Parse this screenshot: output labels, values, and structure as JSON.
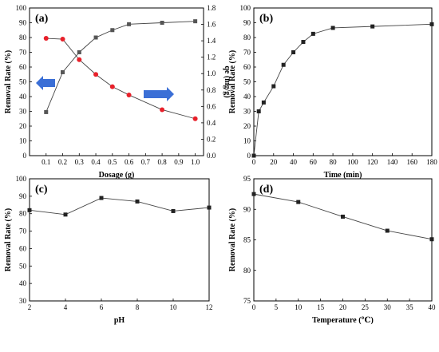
{
  "chart_data": [
    {
      "panel": "(a)",
      "type": "line",
      "xlabel": "Dosage (g)",
      "ylabel": "Removal Rate (%)",
      "y2label": "qe (mg/g)",
      "xlim": [
        0.0,
        1.05
      ],
      "ylim": [
        0,
        100
      ],
      "y2lim": [
        0,
        1.8
      ],
      "xticks": [
        0.1,
        0.2,
        0.3,
        0.4,
        0.5,
        0.6,
        0.7,
        0.8,
        0.9,
        1.0
      ],
      "yticks": [
        0,
        10,
        20,
        30,
        40,
        50,
        60,
        70,
        80,
        90,
        100
      ],
      "y2ticks": [
        0.0,
        0.2,
        0.4,
        0.6,
        0.8,
        1.0,
        1.2,
        1.4,
        1.6,
        1.8
      ],
      "series": [
        {
          "axis": "left",
          "marker": "square",
          "color": "#555555",
          "x": [
            0.1,
            0.2,
            0.3,
            0.4,
            0.5,
            0.6,
            0.8,
            1.0
          ],
          "values": [
            29.5,
            56.5,
            70,
            80,
            85,
            89,
            90,
            91
          ]
        },
        {
          "axis": "right",
          "marker": "circle",
          "color": "#e8202a",
          "x": [
            0.1,
            0.2,
            0.3,
            0.4,
            0.5,
            0.6,
            0.8,
            1.0
          ],
          "values": [
            1.43,
            1.42,
            1.17,
            0.99,
            0.84,
            0.74,
            0.56,
            0.45
          ]
        }
      ],
      "arrows": [
        {
          "direction": "left",
          "color": "#3b6fd6"
        },
        {
          "direction": "right",
          "color": "#3b6fd6"
        }
      ]
    },
    {
      "panel": "(b)",
      "type": "line",
      "xlabel": "Time (min)",
      "ylabel": "Removal Rate (%)",
      "xlim": [
        0,
        180
      ],
      "ylim": [
        0,
        100
      ],
      "xticks": [
        0,
        20,
        40,
        60,
        80,
        100,
        120,
        140,
        160,
        180
      ],
      "yticks": [
        0,
        10,
        20,
        30,
        40,
        50,
        60,
        70,
        80,
        90,
        100
      ],
      "series": [
        {
          "marker": "square",
          "color": "#222222",
          "x": [
            0,
            5,
            10,
            20,
            30,
            40,
            50,
            60,
            80,
            120,
            180
          ],
          "values": [
            0,
            30,
            36,
            47,
            61.5,
            70,
            77,
            82.5,
            86.5,
            87.5,
            89
          ]
        }
      ]
    },
    {
      "panel": "(c)",
      "type": "line",
      "xlabel": "pH",
      "ylabel": "Removal Rate (%)",
      "xlim": [
        2,
        12
      ],
      "ylim": [
        30,
        100
      ],
      "xticks": [
        2,
        4,
        6,
        8,
        10,
        12
      ],
      "yticks": [
        30,
        40,
        50,
        60,
        70,
        80,
        90,
        100
      ],
      "series": [
        {
          "marker": "square",
          "color": "#222222",
          "x": [
            2,
            4,
            6,
            8,
            10,
            12
          ],
          "values": [
            82,
            79.5,
            89,
            87,
            81.5,
            83.5
          ]
        }
      ]
    },
    {
      "panel": "(d)",
      "type": "line",
      "xlabel": "Temperature (℃)",
      "ylabel": "Removal Rate (%)",
      "xlim": [
        0,
        40
      ],
      "ylim": [
        75,
        95
      ],
      "xticks": [
        0,
        5,
        10,
        15,
        20,
        25,
        30,
        35,
        40
      ],
      "yticks": [
        75,
        80,
        85,
        90,
        95
      ],
      "series": [
        {
          "marker": "square",
          "color": "#222222",
          "x": [
            0,
            10,
            20,
            30,
            40
          ],
          "values": [
            92.5,
            91.2,
            88.8,
            86.5,
            85.1
          ]
        }
      ]
    }
  ]
}
